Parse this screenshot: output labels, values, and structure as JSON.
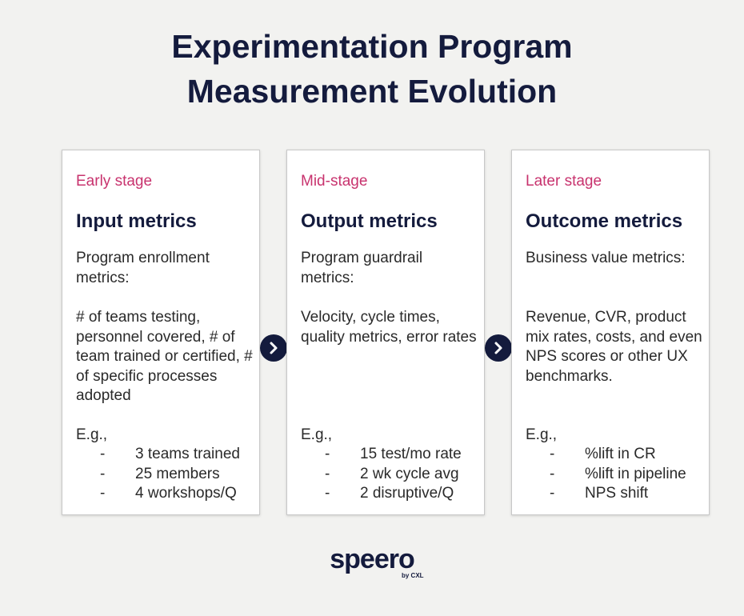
{
  "header": {
    "title_lines": [
      "Experimentation Program",
      "Measurement Evolution"
    ]
  },
  "cards": [
    {
      "stage": "Early stage",
      "heading": "Input metrics",
      "description": "Program enrollment metrics:",
      "details": "# of teams testing, personnel covered, # of team trained or certified, # of specific processes adopted",
      "examples_intro": "E.g.,",
      "examples": [
        "3 teams trained",
        "25 members",
        "4 workshops/Q"
      ]
    },
    {
      "stage": "Mid-stage",
      "heading": "Output metrics",
      "description": "Program guardrail metrics:",
      "details": "Velocity, cycle times, quality metrics, error rates",
      "examples_intro": "E.g.,",
      "examples": [
        "15 test/mo rate",
        "2 wk cycle avg",
        "2 disruptive/Q"
      ]
    },
    {
      "stage": "Later stage",
      "heading": "Outcome metrics",
      "description": "Business value metrics:",
      "details": "Revenue, CVR, product mix rates, costs, and even NPS scores or other UX benchmarks.",
      "examples_intro": "E.g.,",
      "examples": [
        "%lift in CR",
        "%lift in pipeline",
        "NPS shift"
      ]
    }
  ],
  "logo": {
    "name": "speero",
    "byline": "by CXL"
  }
}
